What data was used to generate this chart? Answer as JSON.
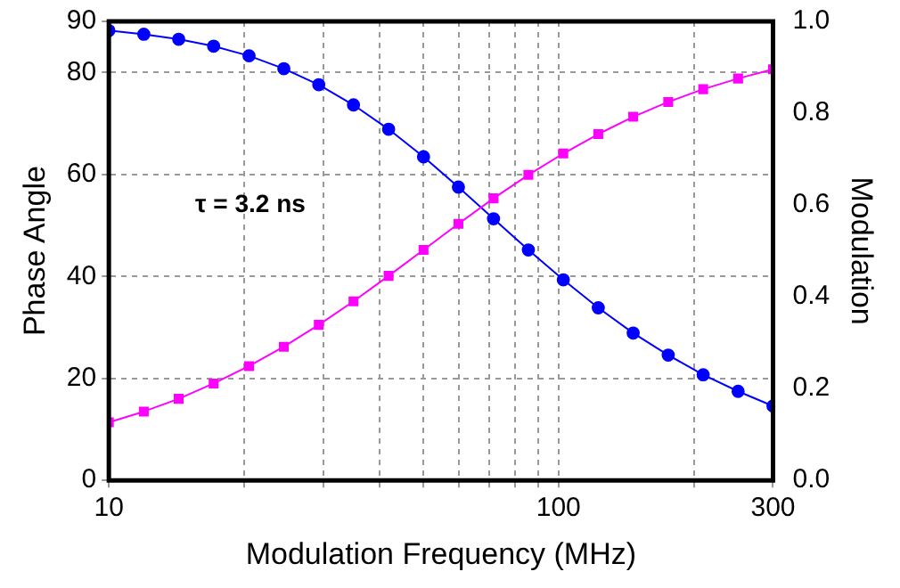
{
  "chart_data": {
    "type": "line",
    "xlabel": "Modulation Frequency (MHz)",
    "ylabel": "Phase Angle",
    "y2label": "Modulation",
    "x": [
      10,
      11.96,
      14.3,
      17.1,
      20.5,
      24.5,
      29.3,
      35.0,
      41.9,
      50.1,
      59.9,
      71.7,
      85.7,
      102.5,
      122.6,
      146.6,
      175.4,
      209.8,
      250.9,
      300
    ],
    "series": [
      {
        "color": "#ff00ff",
        "marker": "square",
        "values": [
          11.4,
          13.5,
          16.0,
          19.0,
          22.4,
          26.2,
          30.5,
          35.1,
          40.1,
          45.2,
          50.3,
          55.3,
          59.9,
          64.1,
          67.9,
          71.3,
          74.2,
          76.7,
          78.8,
          80.6
        ]
      },
      {
        "color": "#0000ff",
        "marker": "circle",
        "axis": "y2",
        "values": [
          0.98,
          0.972,
          0.961,
          0.946,
          0.925,
          0.897,
          0.862,
          0.818,
          0.765,
          0.705,
          0.639,
          0.57,
          0.502,
          0.437,
          0.376,
          0.321,
          0.273,
          0.23,
          0.194,
          0.162
        ]
      }
    ],
    "log": "x",
    "xlim": [
      10,
      300
    ],
    "xticks": [
      10,
      {
        "value": 20,
        "label": null
      },
      {
        "value": 30,
        "label": null
      },
      {
        "value": 40,
        "label": null
      },
      {
        "value": 50,
        "label": null
      },
      {
        "value": 60,
        "label": null
      },
      {
        "value": 70,
        "label": null
      },
      {
        "value": 80,
        "label": null
      },
      {
        "value": 90,
        "label": null
      },
      100,
      {
        "value": 200,
        "label": null
      },
      300
    ],
    "ylim": [
      0,
      90
    ],
    "yticks": [
      0,
      20,
      40,
      60,
      80,
      90
    ],
    "y2lim": [
      0,
      1
    ],
    "y2ticks": [
      {
        "value": 0,
        "label": "0.0"
      },
      {
        "value": 0.2,
        "label": "0.2"
      },
      {
        "value": 0.4,
        "label": "0.4"
      },
      {
        "value": 0.6,
        "label": "0.6"
      },
      {
        "value": 0.8,
        "label": "0.8"
      },
      {
        "value": 1,
        "label": "1.0"
      }
    ],
    "grid": true,
    "legend": false,
    "annotations": [
      "τ = 3.2 ns"
    ]
  }
}
